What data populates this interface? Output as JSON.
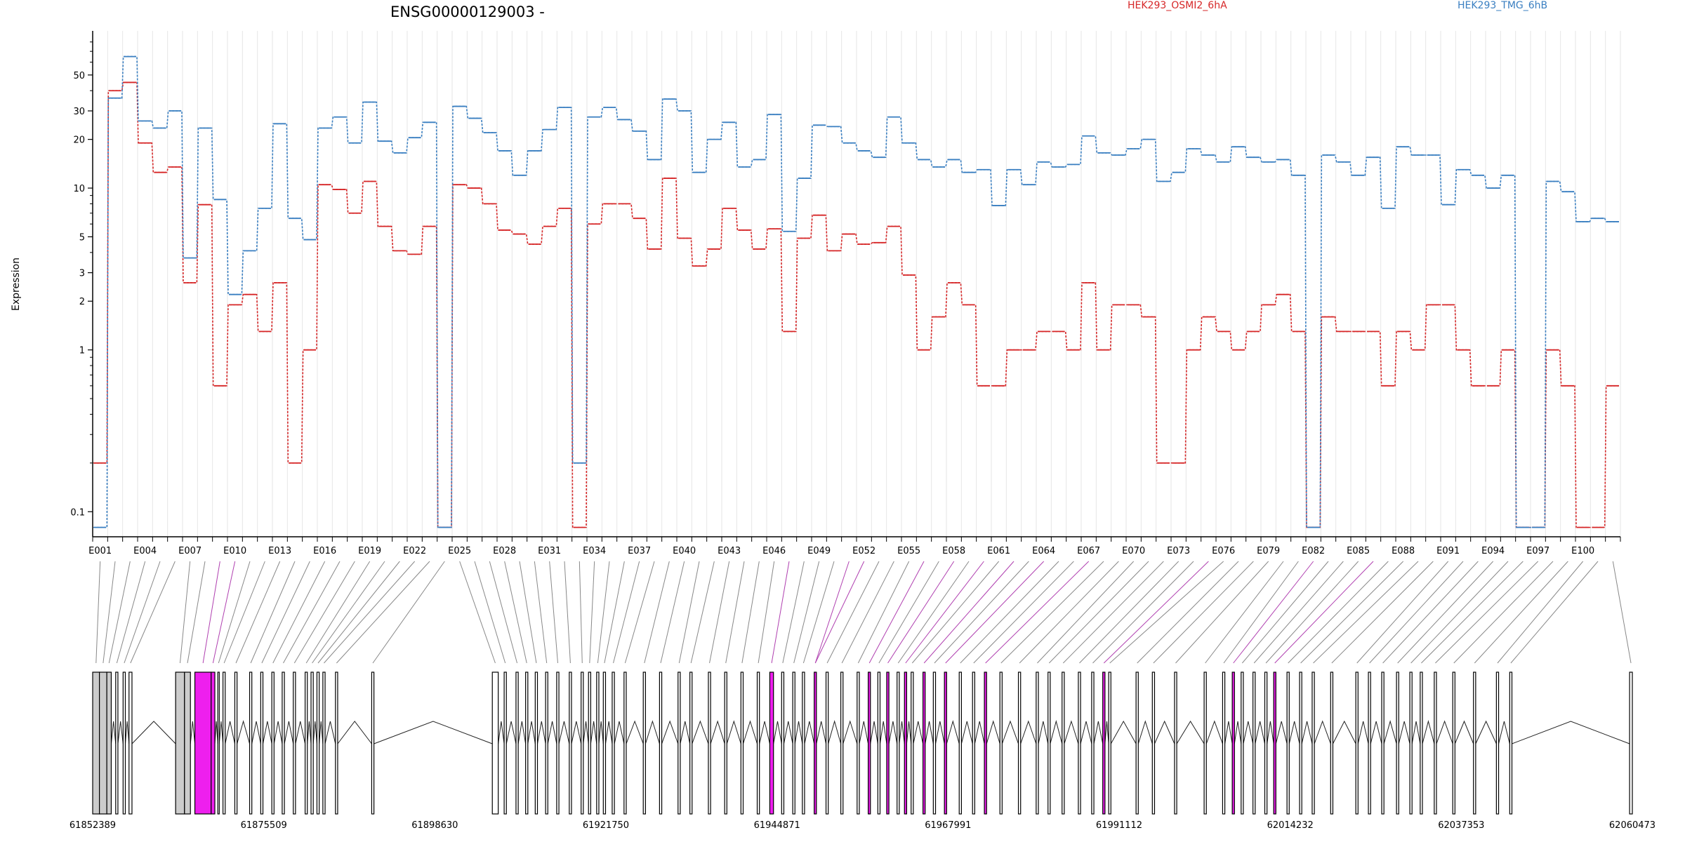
{
  "chart_data": {
    "type": "line",
    "title": "ENSG00000129003 -",
    "ylabel": "Expression",
    "yscale": "log",
    "ylim": [
      0.07,
      90
    ],
    "yticks": [
      0.1,
      1,
      2,
      3,
      5,
      10,
      20,
      30,
      50
    ],
    "grid": "vertical",
    "legend": "top",
    "categories_shown": [
      "E001",
      "E004",
      "E007",
      "E010",
      "E013",
      "E016",
      "E019",
      "E022",
      "E025",
      "E028",
      "E031",
      "E034",
      "E037",
      "E040",
      "E043",
      "E046",
      "E049",
      "E052",
      "E055",
      "E058",
      "E061",
      "E064",
      "E067",
      "E070",
      "E073",
      "E076",
      "E079",
      "E082",
      "E085",
      "E088",
      "E091",
      "E094",
      "E097",
      "E100"
    ],
    "series": [
      {
        "name": "HEK293_OSMI2_6hA",
        "color": "#d62728",
        "values": [
          0.2,
          40,
          45,
          19,
          12.5,
          13.5,
          2.6,
          7.9,
          0.6,
          1.9,
          2.2,
          1.3,
          2.6,
          0.2,
          1,
          10.5,
          9.8,
          7,
          11,
          5.8,
          4.1,
          3.9,
          5.8,
          0.08,
          10.5,
          10,
          8,
          5.5,
          5.2,
          4.5,
          5.8,
          7.5,
          0.08,
          6,
          8,
          8,
          6.5,
          4.2,
          11.5,
          4.9,
          3.3,
          4.2,
          7.5,
          5.5,
          4.2,
          5.6,
          1.3,
          4.9,
          6.8,
          4.1,
          5.2,
          4.5,
          4.6,
          5.8,
          2.9,
          1,
          1.6,
          2.6,
          1.9,
          0.6,
          0.6,
          1,
          1,
          1.3,
          1.3,
          1,
          2.6,
          1,
          1.9,
          1.9,
          1.6,
          0.2,
          0.2,
          1,
          1.6,
          1.3,
          1,
          1.3,
          1.9,
          2.2,
          1.3,
          0.08,
          1.6,
          1.3,
          1.3,
          1.3,
          0.6,
          1.3,
          1,
          1.9,
          1.9,
          1,
          0.6,
          0.6,
          1,
          0.08,
          0.08,
          1,
          0.6,
          0.08,
          0.08,
          0.6
        ]
      },
      {
        "name": "HEK293_TMG_6hB",
        "color": "#3a7fc1",
        "values": [
          0.08,
          36,
          65,
          26,
          23.5,
          30,
          3.7,
          23.5,
          8.5,
          2.2,
          4.1,
          7.5,
          25,
          6.5,
          4.8,
          23.5,
          27.5,
          19,
          34,
          19.5,
          16.5,
          20.5,
          25.5,
          0.08,
          32,
          27,
          22,
          17,
          12,
          17,
          23,
          31.5,
          0.2,
          27.5,
          31.5,
          26.5,
          22.5,
          15,
          35.5,
          30,
          12.5,
          20,
          25.5,
          13.5,
          15,
          28.5,
          5.4,
          11.5,
          24.5,
          24,
          19,
          17,
          15.5,
          27.5,
          19,
          15,
          13.5,
          15,
          12.5,
          13,
          7.8,
          13,
          10.5,
          14.5,
          13.5,
          14,
          21,
          16.5,
          16,
          17.5,
          20,
          11,
          12.5,
          17.5,
          16,
          14.5,
          18,
          15.5,
          14.5,
          15,
          12,
          0.08,
          16,
          14.5,
          12,
          15.5,
          7.5,
          18,
          16,
          16,
          7.9,
          13,
          12,
          10,
          12,
          0.08,
          0.08,
          11,
          9.5,
          6.2,
          6.5,
          6.2
        ]
      }
    ],
    "exon_markers": [
      {
        "label": "HEK293_OSMI2_6hA",
        "color": "#d62728"
      },
      {
        "label": "HEK293_TMG_6hB",
        "color": "#3a7fc1"
      }
    ],
    "gene_model": {
      "xlim": [
        61852389,
        62060473
      ],
      "tick_labels": [
        "61852389",
        "61875509",
        "61898630",
        "61921750",
        "61944871",
        "61967991",
        "61991112",
        "62014232",
        "62037353",
        "62060473"
      ],
      "exons": [
        [
          61852389,
          61853300,
          "#cccccc"
        ],
        [
          61853300,
          61854300,
          "#cccccc"
        ],
        [
          61854300,
          61854900,
          "#cccccc"
        ],
        [
          61855500,
          61855800,
          "#ffffff"
        ],
        [
          61856500,
          61856800,
          "#ffffff"
        ],
        [
          61857300,
          61857700,
          "#ffffff"
        ],
        [
          61863600,
          61864800,
          "#cccccc"
        ],
        [
          61864800,
          61865600,
          "#cccccc"
        ],
        [
          61866200,
          61868400,
          "#ee1fee"
        ],
        [
          61868400,
          61868900,
          "#ee1fee"
        ],
        [
          61869300,
          61869500,
          "#ffffff"
        ],
        [
          61870000,
          61870300,
          "#ffffff"
        ],
        [
          61871600,
          61871900,
          "#ffffff"
        ],
        [
          61873600,
          61873900,
          "#ffffff"
        ],
        [
          61875100,
          61875400,
          "#ffffff"
        ],
        [
          61876600,
          61876900,
          "#ffffff"
        ],
        [
          61878000,
          61878300,
          "#ffffff"
        ],
        [
          61879500,
          61879800,
          "#ffffff"
        ],
        [
          61881100,
          61881400,
          "#ffffff"
        ],
        [
          61881900,
          61882200,
          "#ffffff"
        ],
        [
          61882700,
          61883000,
          "#ffffff"
        ],
        [
          61883500,
          61883800,
          "#ffffff"
        ],
        [
          61885200,
          61885500,
          "#ffffff"
        ],
        [
          61890100,
          61890400,
          "#ffffff"
        ],
        [
          61906400,
          61907200,
          "#ffffff"
        ],
        [
          61908000,
          61908300,
          "#ffffff"
        ],
        [
          61909600,
          61909900,
          "#ffffff"
        ],
        [
          61910900,
          61911200,
          "#ffffff"
        ],
        [
          61912200,
          61912500,
          "#ffffff"
        ],
        [
          61913600,
          61913900,
          "#ffffff"
        ],
        [
          61915100,
          61915400,
          "#ffffff"
        ],
        [
          61916800,
          61917100,
          "#ffffff"
        ],
        [
          61918400,
          61918700,
          "#ffffff"
        ],
        [
          61919400,
          61919700,
          "#ffffff"
        ],
        [
          61920500,
          61920800,
          "#ffffff"
        ],
        [
          61921400,
          61921700,
          "#ffffff"
        ],
        [
          61922600,
          61922900,
          "#ffffff"
        ],
        [
          61924200,
          61924500,
          "#ffffff"
        ],
        [
          61926800,
          61927100,
          "#ffffff"
        ],
        [
          61929000,
          61929300,
          "#ffffff"
        ],
        [
          61931500,
          61931800,
          "#ffffff"
        ],
        [
          61933100,
          61933400,
          "#ffffff"
        ],
        [
          61935600,
          61935900,
          "#ffffff"
        ],
        [
          61937800,
          61938100,
          "#ffffff"
        ],
        [
          61940000,
          61940300,
          "#ffffff"
        ],
        [
          61942200,
          61942500,
          "#ffffff"
        ],
        [
          61943900,
          61944400,
          "#ee1fee"
        ],
        [
          61945500,
          61945800,
          "#ffffff"
        ],
        [
          61947000,
          61947300,
          "#ffffff"
        ],
        [
          61948300,
          61948600,
          "#ffffff"
        ],
        [
          61949900,
          61950200,
          "#ee1fee"
        ],
        [
          61951500,
          61951800,
          "#ffffff"
        ],
        [
          61953500,
          61953800,
          "#ffffff"
        ],
        [
          61955700,
          61956000,
          "#ffffff"
        ],
        [
          61957200,
          61957500,
          "#ee1fee"
        ],
        [
          61958500,
          61958800,
          "#ffffff"
        ],
        [
          61959700,
          61960000,
          "#ee1fee"
        ],
        [
          61961100,
          61961400,
          "#ffffff"
        ],
        [
          61962100,
          61962400,
          "#ee1fee"
        ],
        [
          61963000,
          61963300,
          "#ffffff"
        ],
        [
          61964600,
          61964900,
          "#ee1fee"
        ],
        [
          61966000,
          61966300,
          "#ffffff"
        ],
        [
          61967500,
          61967800,
          "#ee1fee"
        ],
        [
          61969500,
          61969800,
          "#ffffff"
        ],
        [
          61971300,
          61971600,
          "#ffffff"
        ],
        [
          61972900,
          61973200,
          "#ee1fee"
        ],
        [
          61975000,
          61975300,
          "#ffffff"
        ],
        [
          61977500,
          61977800,
          "#ffffff"
        ],
        [
          61979900,
          61980200,
          "#ffffff"
        ],
        [
          61981500,
          61981800,
          "#ffffff"
        ],
        [
          61983400,
          61983700,
          "#ffffff"
        ],
        [
          61985600,
          61985900,
          "#ffffff"
        ],
        [
          61987400,
          61987700,
          "#ffffff"
        ],
        [
          61988900,
          61989200,
          "#ee1fee"
        ],
        [
          61989700,
          61990000,
          "#ffffff"
        ],
        [
          61993400,
          61993700,
          "#ffffff"
        ],
        [
          61995600,
          61995900,
          "#ffffff"
        ],
        [
          61998600,
          61998900,
          "#ffffff"
        ],
        [
          62002600,
          62002900,
          "#ffffff"
        ],
        [
          62005100,
          62005400,
          "#ffffff"
        ],
        [
          62006400,
          62006700,
          "#ee1fee"
        ],
        [
          62007600,
          62007900,
          "#ffffff"
        ],
        [
          62009200,
          62009500,
          "#ffffff"
        ],
        [
          62010800,
          62011100,
          "#ffffff"
        ],
        [
          62012000,
          62012300,
          "#ee1fee"
        ],
        [
          62013800,
          62014100,
          "#ffffff"
        ],
        [
          62015500,
          62015800,
          "#ffffff"
        ],
        [
          62017200,
          62017500,
          "#ffffff"
        ],
        [
          62019700,
          62020000,
          "#ffffff"
        ],
        [
          62023100,
          62023400,
          "#ffffff"
        ],
        [
          62024800,
          62025100,
          "#ffffff"
        ],
        [
          62026600,
          62026900,
          "#ffffff"
        ],
        [
          62028600,
          62028900,
          "#ffffff"
        ],
        [
          62030400,
          62030700,
          "#ffffff"
        ],
        [
          62031800,
          62032100,
          "#ffffff"
        ],
        [
          62033700,
          62034000,
          "#ffffff"
        ],
        [
          62036200,
          62036500,
          "#ffffff"
        ],
        [
          62039000,
          62039300,
          "#ffffff"
        ],
        [
          62042100,
          62042400,
          "#ffffff"
        ],
        [
          62043900,
          62044200,
          "#ffffff"
        ],
        [
          62060100,
          62060473,
          "#ffffff"
        ]
      ]
    }
  }
}
